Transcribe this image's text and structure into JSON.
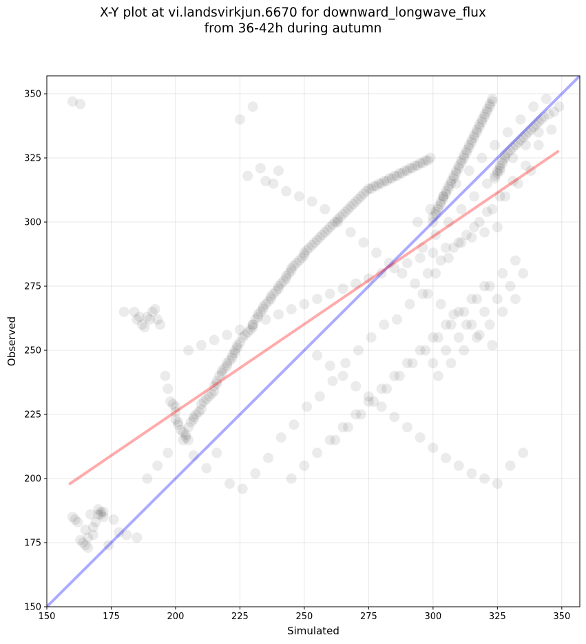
{
  "chart_data": {
    "type": "scatter",
    "title": "X-Y plot at vi.landsvirkjun.6670 for downward_longwave_flux",
    "subtitle": "from 36-42h during autumn",
    "xlabel": "Simulated",
    "ylabel": "Observed",
    "xlim": [
      150,
      357
    ],
    "ylim": [
      150,
      357
    ],
    "xticks": [
      150,
      175,
      200,
      225,
      250,
      275,
      300,
      325,
      350
    ],
    "yticks": [
      150,
      175,
      200,
      225,
      250,
      275,
      300,
      325,
      350
    ],
    "grid": true,
    "point_color": "#000000",
    "point_opacity": 0.08,
    "lines": [
      {
        "role": "one-to-one",
        "color": "#0000ff",
        "opacity": 0.33,
        "x": [
          150,
          357
        ],
        "y": [
          150,
          357
        ]
      },
      {
        "role": "linear-fit",
        "color": "#ff0000",
        "opacity": 0.33,
        "x": [
          159,
          348.5
        ],
        "y": [
          198,
          327.5
        ]
      }
    ],
    "points": {
      "x": [
        160,
        161,
        162,
        163,
        164,
        165,
        166,
        166,
        168,
        168,
        169,
        170,
        171,
        171,
        172,
        174,
        178,
        180,
        184,
        185,
        186,
        187,
        188,
        189,
        190,
        191,
        192,
        193,
        194,
        196,
        197,
        198,
        199,
        200,
        200,
        200,
        201,
        201,
        202,
        203,
        204,
        204,
        205,
        205,
        206,
        207,
        207,
        208,
        209,
        210,
        210,
        211,
        212,
        213,
        214,
        215,
        215,
        216,
        216,
        217,
        218,
        218,
        219,
        220,
        220,
        221,
        222,
        222,
        223,
        223,
        224,
        224,
        225,
        226,
        227,
        228,
        229,
        230,
        230,
        231,
        232,
        232,
        233,
        234,
        234,
        235,
        236,
        237,
        237,
        238,
        239,
        240,
        240,
        241,
        242,
        243,
        243,
        244,
        245,
        245,
        246,
        247,
        248,
        249,
        250,
        250,
        251,
        252,
        253,
        254,
        255,
        256,
        257,
        258,
        259,
        260,
        261,
        262,
        263,
        264,
        265,
        266,
        267,
        268,
        269,
        270,
        271,
        272,
        273,
        274,
        275,
        276,
        277,
        278,
        279,
        280,
        281,
        282,
        283,
        284,
        285,
        286,
        287,
        288,
        289,
        290,
        291,
        292,
        293,
        294,
        295,
        296,
        297,
        298,
        299,
        300,
        300,
        301,
        301,
        302,
        302,
        303,
        303,
        304,
        304,
        305,
        305,
        306,
        306,
        307,
        307,
        308,
        308,
        309,
        309,
        310,
        310,
        311,
        311,
        312,
        312,
        313,
        313,
        314,
        314,
        315,
        315,
        316,
        316,
        317,
        317,
        318,
        318,
        319,
        319,
        320,
        320,
        321,
        321,
        322,
        322,
        323,
        323,
        324,
        324,
        325,
        325,
        326,
        326,
        327,
        327,
        328,
        328,
        329,
        330,
        331,
        332,
        333,
        334,
        335,
        336,
        337,
        338,
        339,
        340,
        341,
        342,
        343,
        345,
        347,
        349,
        160,
        163,
        165,
        167,
        170,
        172,
        176,
        181,
        185,
        189,
        193,
        197,
        203,
        207,
        212,
        216,
        221,
        226,
        231,
        236,
        241,
        246,
        251,
        256,
        261,
        266,
        271,
        276,
        281,
        286,
        291,
        296,
        301,
        306,
        311,
        316,
        321,
        326,
        331,
        336,
        341,
        346,
        225,
        230,
        235,
        240,
        228,
        233,
        238,
        243,
        248,
        253,
        258,
        263,
        268,
        273,
        278,
        283,
        288,
        293,
        298,
        303,
        308,
        313,
        318,
        323,
        255,
        260,
        265,
        270,
        275,
        280,
        285,
        290,
        295,
        300,
        305,
        310,
        315,
        320,
        325,
        330,
        335,
        262,
        267,
        272,
        277,
        282,
        287,
        292,
        297,
        302,
        307,
        312,
        317,
        322,
        327,
        332,
        245,
        250,
        255,
        260,
        265,
        270,
        275,
        280,
        285,
        290,
        295,
        300,
        305,
        310,
        315,
        320,
        205,
        210,
        215,
        220,
        225,
        230,
        235,
        240,
        245,
        250,
        255,
        260,
        265,
        270,
        275,
        280,
        285,
        290,
        295,
        300,
        305,
        310,
        315,
        320,
        325,
        300,
        305,
        310,
        315,
        320,
        325,
        330,
        335,
        302,
        307,
        312,
        317,
        322,
        327,
        332,
        298,
        303,
        308,
        313,
        318,
        323,
        328,
        333,
        338,
        296,
        301,
        306,
        311,
        316,
        321,
        326,
        331,
        336,
        341,
        294,
        299,
        304,
        309,
        314,
        319,
        324,
        329,
        334,
        339,
        344
      ],
      "y": [
        185,
        184,
        183,
        176,
        175,
        174,
        173,
        177,
        178,
        181,
        183,
        186,
        187,
        186,
        185,
        174,
        179,
        265,
        265,
        262,
        263,
        260,
        259,
        263,
        262,
        265,
        266,
        262,
        260,
        240,
        235,
        230,
        229,
        228,
        226,
        223,
        222,
        221,
        219,
        218,
        217,
        216,
        215,
        220,
        222,
        223,
        224,
        225,
        226,
        227,
        229,
        230,
        231,
        232,
        233,
        234,
        236,
        237,
        238,
        240,
        241,
        242,
        243,
        244,
        245,
        246,
        247,
        248,
        249,
        250,
        251,
        252,
        253,
        255,
        256,
        257,
        258,
        259,
        260,
        262,
        263,
        264,
        265,
        266,
        267,
        268,
        269,
        270,
        271,
        272,
        273,
        274,
        275,
        276,
        277,
        278,
        279,
        280,
        281,
        282,
        283,
        284,
        285,
        286,
        287,
        288,
        289,
        290,
        291,
        292,
        293,
        294,
        295,
        296,
        297,
        298,
        299,
        300,
        301,
        302,
        303,
        304,
        305,
        306,
        307,
        308,
        309,
        310,
        311,
        312,
        313,
        313,
        314,
        314,
        315,
        315,
        316,
        316,
        317,
        317,
        318,
        318,
        319,
        319,
        320,
        320,
        321,
        321,
        322,
        322,
        323,
        323,
        324,
        324,
        325,
        300,
        302,
        303,
        304,
        305,
        306,
        307,
        308,
        309,
        310,
        311,
        312,
        313,
        314,
        315,
        316,
        317,
        318,
        319,
        320,
        321,
        322,
        323,
        324,
        325,
        326,
        327,
        328,
        329,
        330,
        331,
        332,
        333,
        334,
        335,
        336,
        337,
        338,
        339,
        340,
        341,
        342,
        343,
        344,
        345,
        346,
        347,
        348,
        317,
        318,
        319,
        320,
        321,
        322,
        323,
        324,
        325,
        326,
        327,
        328,
        329,
        330,
        331,
        332,
        333,
        334,
        335,
        336,
        337,
        338,
        339,
        340,
        341,
        342,
        343,
        345,
        347,
        346,
        180,
        186,
        188,
        187,
        184,
        178,
        177,
        200,
        205,
        210,
        215,
        209,
        204,
        210,
        198,
        196,
        202,
        208,
        216,
        221,
        228,
        232,
        238,
        245,
        250,
        255,
        260,
        262,
        268,
        272,
        280,
        286,
        292,
        298,
        304,
        310,
        316,
        322,
        330,
        336,
        340,
        345,
        316,
        320,
        318,
        321,
        315,
        312,
        310,
        308,
        305,
        300,
        296,
        292,
        288,
        284,
        280,
        276,
        272,
        268,
        264,
        260,
        256,
        252,
        248,
        244,
        240,
        236,
        232,
        228,
        224,
        220,
        216,
        212,
        208,
        205,
        202,
        200,
        198,
        205,
        210,
        215,
        220,
        225,
        230,
        235,
        240,
        245,
        250,
        255,
        260,
        265,
        270,
        275,
        280,
        285,
        200,
        205,
        210,
        215,
        220,
        225,
        230,
        235,
        240,
        245,
        250,
        255,
        260,
        265,
        270,
        275,
        250,
        252,
        254,
        256,
        258,
        260,
        262,
        264,
        266,
        268,
        270,
        272,
        274,
        276,
        278,
        280,
        282,
        284,
        286,
        288,
        290,
        292,
        294,
        296,
        298,
        245,
        250,
        255,
        260,
        265,
        270,
        275,
        280,
        240,
        245,
        250,
        255,
        260,
        265,
        270,
        280,
        285,
        290,
        295,
        300,
        305,
        310,
        315,
        320,
        290,
        295,
        300,
        305,
        310,
        315,
        320,
        325,
        330,
        335,
        300,
        305,
        310,
        315,
        320,
        325,
        330,
        335,
        340,
        345,
        348
      ]
    }
  }
}
